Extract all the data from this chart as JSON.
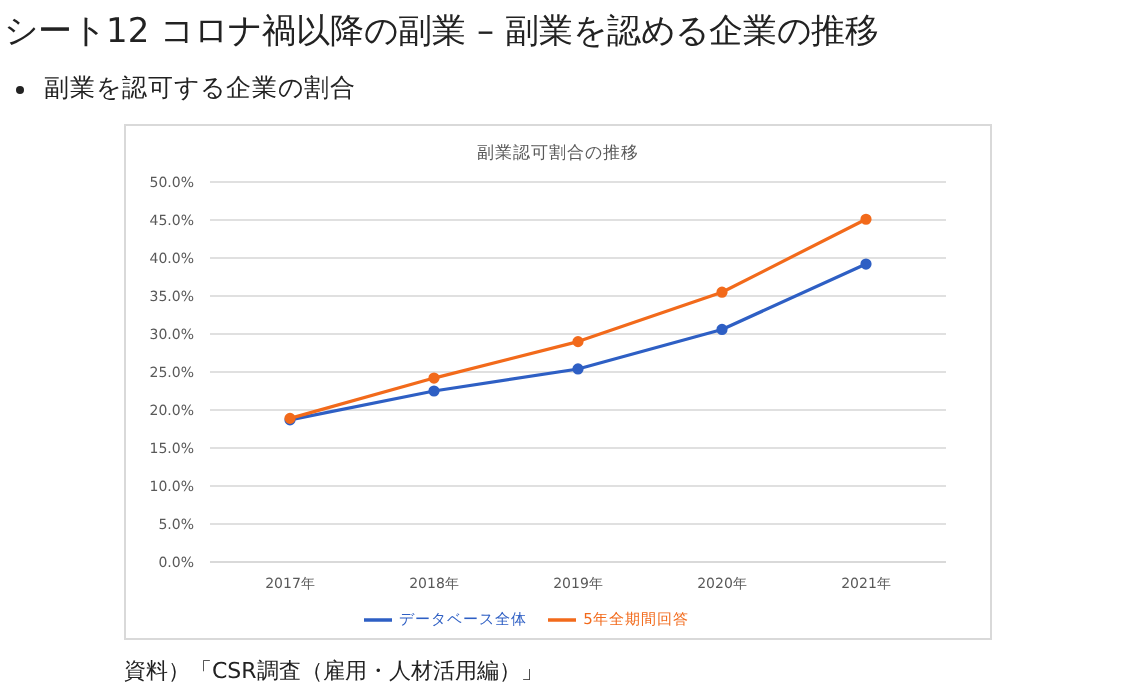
{
  "chart_data": {
    "type": "line",
    "title": "シート12  コロナ禍以降の副業 – 副業を認める企業の推移",
    "subtitle": "副業を認可する企業の割合",
    "annotations": [
      "副業認可割合の推移",
      "資料）「CSR調査（雇用・人材活用編）」"
    ],
    "categories": [
      "2017年",
      "2018年",
      "2019年",
      "2020年",
      "2021年"
    ],
    "series": [
      {
        "name": "データベース全体",
        "color": "#2e5fc4",
        "values": [
          18.7,
          22.5,
          25.4,
          30.6,
          39.2
        ]
      },
      {
        "name": "5年全期間回答",
        "color": "#f26a1b",
        "values": [
          18.9,
          24.2,
          29.0,
          35.5,
          45.1
        ]
      }
    ],
    "ylim": [
      0,
      50
    ],
    "yticks": [
      {
        "value": 0,
        "label": "0.0%"
      },
      {
        "value": 5,
        "label": "5.0%"
      },
      {
        "value": 10,
        "label": "10.0%"
      },
      {
        "value": 15,
        "label": "15.0%"
      },
      {
        "value": 20,
        "label": "20.0%"
      },
      {
        "value": 25,
        "label": "25.0%"
      },
      {
        "value": 30,
        "label": "30.0%"
      },
      {
        "value": 35,
        "label": "35.0%"
      },
      {
        "value": 40,
        "label": "40.0%"
      },
      {
        "value": 45,
        "label": "45.0%"
      },
      {
        "value": 50,
        "label": "50.0%"
      }
    ],
    "grid": "y",
    "legend": "bottom",
    "marker": "circle",
    "line_style": "solid"
  }
}
